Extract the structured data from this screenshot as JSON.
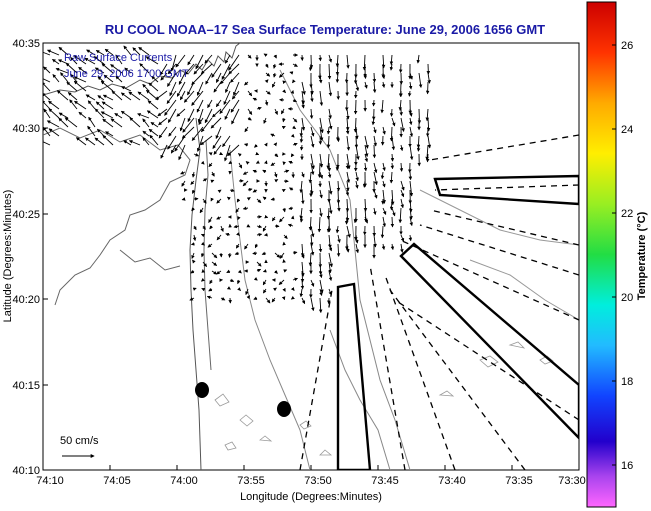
{
  "title": "RU COOL  NOAA–17  Sea Surface Temperature:  June 29, 2006 1656 GMT",
  "overlay": {
    "line1": "Raw Surface Currents",
    "line2": "June 29, 2006 1700 GMT"
  },
  "axes": {
    "xlabel": "Longitude (Degrees:Minutes)",
    "ylabel": "Latitude (Degrees:Minutes)",
    "xticks": [
      "74:10",
      "74:05",
      "74:00",
      "73:55",
      "73:50",
      "73:45",
      "73:40",
      "73:35",
      "73:30"
    ],
    "yticks": [
      "40:35",
      "40:30",
      "40:25",
      "40:20",
      "40:15",
      "40:10"
    ]
  },
  "scale_label": "50 cm/s",
  "colorbar": {
    "label": "Temperature (°C)",
    "ticks": [
      "26",
      "24",
      "22",
      "20",
      "18",
      "16"
    ],
    "range": [
      15,
      27
    ]
  },
  "colors": {
    "title": "#1a1aa6",
    "ink": "#000000"
  }
}
